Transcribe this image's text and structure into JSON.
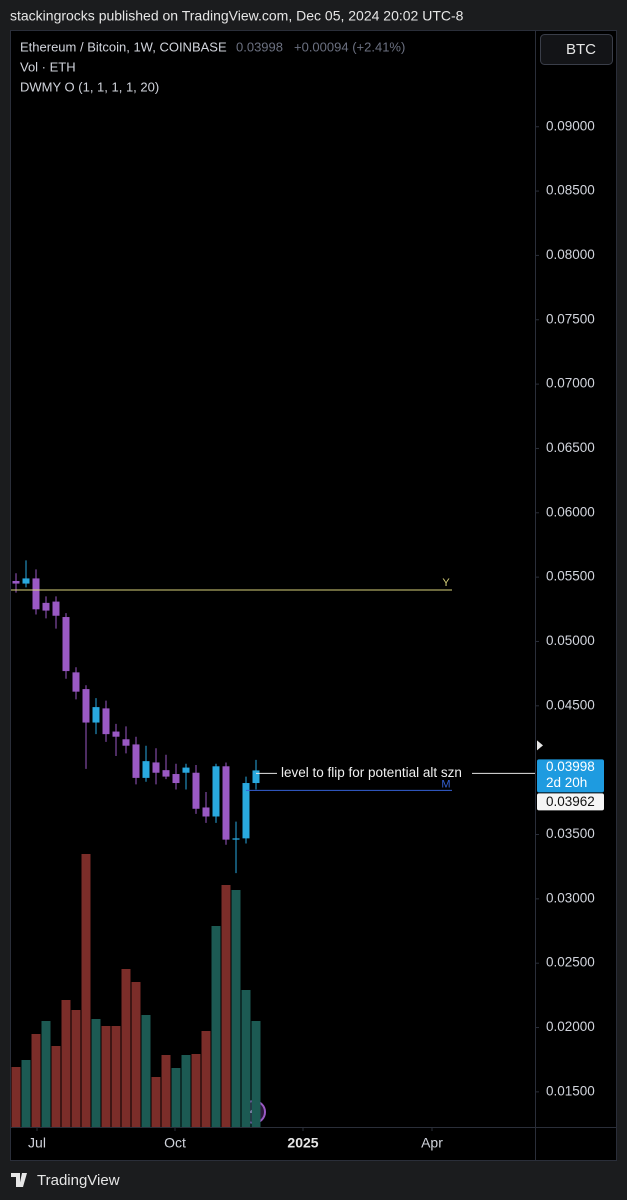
{
  "header": {
    "text": "stackingrocks published on TradingView.com, Dec 05, 2024 20:02 UTC-8"
  },
  "legend": {
    "symbol": "Ethereum / Bitcoin, 1W, COINBASE",
    "change": "+0.00094 (+2.41%)",
    "volume": "Vol · ETH",
    "indicator": "DWMY O (1, 1, 1, 1, 20)"
  },
  "currency_button": "BTC",
  "footer": {
    "brand": "TradingView"
  },
  "chart_data": {
    "type": "candlestick",
    "open": [
      0.0547,
      0.0545,
      0.0549,
      0.053,
      0.0531,
      0.0519,
      0.0476,
      0.0463,
      0.0437,
      0.0448,
      0.043,
      0.0424,
      0.042,
      0.0394,
      0.0406,
      0.04,
      0.0397,
      0.0398,
      0.0398,
      0.0371,
      0.0364,
      0.0403,
      0.0346,
      0.0347,
      0.039
    ],
    "high": [
      0.0553,
      0.0563,
      0.0556,
      0.0535,
      0.0535,
      0.0522,
      0.048,
      0.0466,
      0.0456,
      0.0454,
      0.0436,
      0.0434,
      0.0426,
      0.0419,
      0.0417,
      0.0412,
      0.0405,
      0.0405,
      0.0404,
      0.0383,
      0.0405,
      0.0406,
      0.036,
      0.0395,
      0.0408
    ],
    "low": [
      0.0538,
      0.0542,
      0.0521,
      0.0518,
      0.051,
      0.0471,
      0.0455,
      0.0401,
      0.0428,
      0.0422,
      0.0411,
      0.0413,
      0.0389,
      0.0391,
      0.0389,
      0.0393,
      0.0385,
      0.0385,
      0.0366,
      0.0359,
      0.0359,
      0.0342,
      0.032,
      0.0343,
      0.0385
    ],
    "close": [
      0.0545,
      0.0549,
      0.0525,
      0.0524,
      0.052,
      0.0477,
      0.0461,
      0.0437,
      0.0449,
      0.0428,
      0.0426,
      0.0419,
      0.0394,
      0.0407,
      0.0398,
      0.0395,
      0.039,
      0.0402,
      0.037,
      0.0364,
      0.0403,
      0.0346,
      0.0347,
      0.039,
      0.03998
    ],
    "up_color": "#29a9df",
    "down_color": "#9a59c4",
    "volume": [
      60,
      67,
      93,
      106,
      81,
      127,
      117,
      273,
      108,
      101,
      101,
      158,
      145,
      112,
      50,
      72,
      59,
      72,
      73,
      96,
      201,
      242,
      237,
      137,
      106
    ],
    "volume_colors": [
      "#7b2d29",
      "#1c5a53",
      "#7b2d29",
      "#1c5a53",
      "#7b2d29",
      "#7b2d29",
      "#7b2d29",
      "#7b2d29",
      "#1c5a53",
      "#7b2d29",
      "#7b2d29",
      "#7b2d29",
      "#7b2d29",
      "#1c5a53",
      "#7b2d29",
      "#7b2d29",
      "#1c5a53",
      "#1c5a53",
      "#7b2d29",
      "#7b2d29",
      "#1c5a53",
      "#7b2d29",
      "#1c5a53",
      "#1c5a53",
      "#1c5a53"
    ],
    "xlim": [
      -0.5,
      51.9
    ],
    "xticks": [
      {
        "value": 2.1,
        "label": "Jul"
      },
      {
        "value": 15.9,
        "label": "Oct"
      },
      {
        "value": 28.7,
        "label": "2025"
      },
      {
        "value": 41.6,
        "label": "Apr"
      }
    ],
    "ylim": [
      0.01227,
      0.09744
    ],
    "yticks": [
      {
        "value": 0.015,
        "label": "0.01500"
      },
      {
        "value": 0.02,
        "label": "0.02000"
      },
      {
        "value": 0.025,
        "label": "0.02500"
      },
      {
        "value": 0.03,
        "label": "0.03000"
      },
      {
        "value": 0.035,
        "label": "0.03500"
      },
      {
        "value": 0.045,
        "label": "0.04500"
      },
      {
        "value": 0.05,
        "label": "0.05000"
      },
      {
        "value": 0.055,
        "label": "0.05500"
      },
      {
        "value": 0.06,
        "label": "0.06000"
      },
      {
        "value": 0.065,
        "label": "0.06500"
      },
      {
        "value": 0.07,
        "label": "0.07000"
      },
      {
        "value": 0.075,
        "label": "0.07500"
      },
      {
        "value": 0.08,
        "label": "0.08000"
      },
      {
        "value": 0.085,
        "label": "0.08500"
      },
      {
        "value": 0.09,
        "label": "0.09000"
      }
    ],
    "levels": [
      {
        "label": "Y",
        "value": 0.054,
        "color": "#d8d27a"
      },
      {
        "label": "M",
        "value": 0.03843,
        "color": "#3561d4"
      }
    ],
    "annotation": {
      "text": "level to flip for potential alt szn",
      "value": 0.03975
    },
    "last_price": 0.03998,
    "countdown": "2d 20h",
    "prev_price": 0.03962
  }
}
